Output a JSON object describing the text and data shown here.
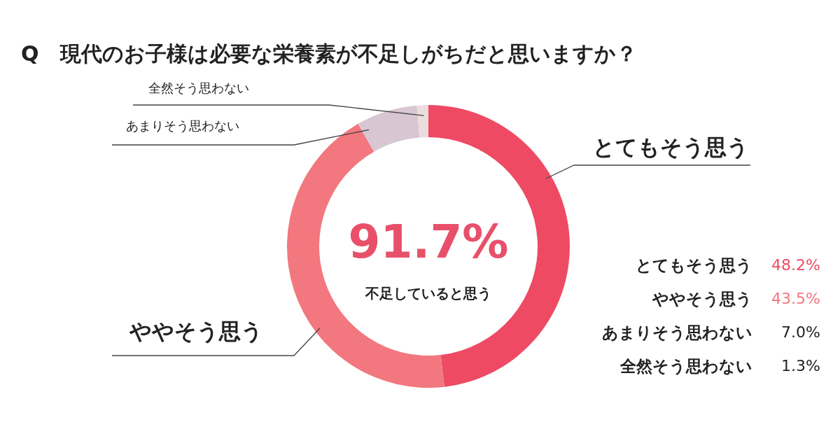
{
  "chart_data": {
    "type": "donut",
    "title": "Q　現代のお子様は必要な栄養素が不足しがちだと思いますか？",
    "categories": [
      "とてもそう思う",
      "ややそう思う",
      "あまりそう思わない",
      "全然そう思わない"
    ],
    "values": [
      48.2,
      43.5,
      7.0,
      1.3
    ],
    "colors": [
      "#ee4a64",
      "#f2777e",
      "#d8c6d2",
      "#ecdcdc"
    ],
    "annotations": [
      "91.7%",
      "不足していると思う",
      "48.2%",
      "43.5%",
      "7.0%",
      "1.3%"
    ]
  }
}
